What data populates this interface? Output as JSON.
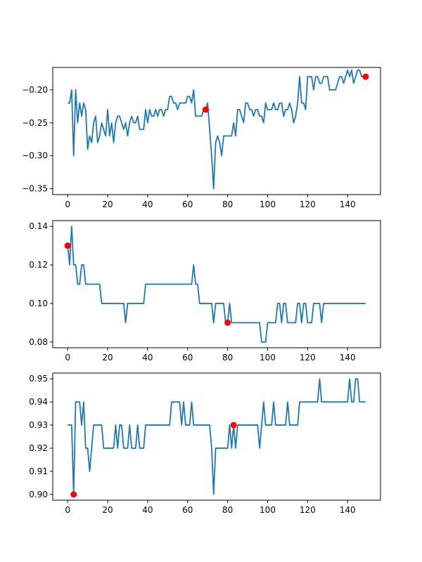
{
  "chart_data": [
    {
      "type": "line",
      "title": "",
      "xlabel": "",
      "ylabel": "",
      "xlim": [
        -7.45,
        156.45
      ],
      "ylim": [
        -0.359,
        -0.166
      ],
      "xticks": [
        0,
        20,
        40,
        60,
        80,
        100,
        120,
        140
      ],
      "xtick_labels": [
        "0",
        "20",
        "40",
        "60",
        "80",
        "100",
        "120",
        "140"
      ],
      "yticks": [
        -0.35,
        -0.3,
        -0.25,
        -0.2
      ],
      "ytick_labels": [
        "−0.35",
        "−0.30",
        "−0.25",
        "−0.20"
      ],
      "line_color": "#1f77b4",
      "marker_color": "#ff0000",
      "grid": false,
      "series": [
        {
          "x": [
            0,
            1,
            2,
            3,
            4,
            5,
            6,
            7,
            8,
            9,
            10,
            11,
            12,
            13,
            14,
            15,
            16,
            17,
            18,
            19,
            20,
            21,
            22,
            23,
            24,
            25,
            26,
            27,
            28,
            29,
            30,
            31,
            32,
            33,
            34,
            35,
            36,
            37,
            38,
            39,
            40,
            41,
            42,
            43,
            44,
            45,
            46,
            47,
            48,
            49,
            50,
            51,
            52,
            53,
            54,
            55,
            56,
            57,
            58,
            59,
            60,
            61,
            62,
            63,
            64,
            65,
            66,
            67,
            68,
            69,
            70,
            71,
            72,
            73,
            74,
            75,
            76,
            77,
            78,
            79,
            80,
            81,
            82,
            83,
            84,
            85,
            86,
            87,
            88,
            89,
            90,
            91,
            92,
            93,
            94,
            95,
            96,
            97,
            98,
            99,
            100,
            101,
            102,
            103,
            104,
            105,
            106,
            107,
            108,
            109,
            110,
            111,
            112,
            113,
            114,
            115,
            116,
            117,
            118,
            119,
            120,
            121,
            122,
            123,
            124,
            125,
            126,
            127,
            128,
            129,
            130,
            131,
            132,
            133,
            134,
            135,
            136,
            137,
            138,
            139,
            140,
            141,
            142,
            143,
            144,
            145,
            146,
            147,
            148,
            149
          ],
          "y": [
            -0.22,
            -0.22,
            -0.2,
            -0.3,
            -0.2,
            -0.25,
            -0.22,
            -0.24,
            -0.22,
            -0.23,
            -0.29,
            -0.27,
            -0.28,
            -0.25,
            -0.24,
            -0.28,
            -0.27,
            -0.25,
            -0.26,
            -0.27,
            -0.23,
            -0.27,
            -0.25,
            -0.28,
            -0.25,
            -0.24,
            -0.24,
            -0.25,
            -0.26,
            -0.25,
            -0.27,
            -0.25,
            -0.24,
            -0.25,
            -0.25,
            -0.24,
            -0.26,
            -0.26,
            -0.26,
            -0.23,
            -0.25,
            -0.23,
            -0.24,
            -0.24,
            -0.23,
            -0.24,
            -0.23,
            -0.23,
            -0.24,
            -0.23,
            -0.23,
            -0.21,
            -0.21,
            -0.22,
            -0.22,
            -0.23,
            -0.22,
            -0.22,
            -0.22,
            -0.22,
            -0.21,
            -0.21,
            -0.22,
            -0.2,
            -0.24,
            -0.24,
            -0.24,
            -0.24,
            -0.23,
            -0.23,
            -0.22,
            -0.26,
            -0.3,
            -0.35,
            -0.28,
            -0.27,
            -0.28,
            -0.3,
            -0.27,
            -0.27,
            -0.27,
            -0.27,
            -0.27,
            -0.25,
            -0.27,
            -0.23,
            -0.23,
            -0.24,
            -0.25,
            -0.22,
            -0.22,
            -0.23,
            -0.23,
            -0.24,
            -0.23,
            -0.23,
            -0.24,
            -0.24,
            -0.25,
            -0.22,
            -0.23,
            -0.23,
            -0.23,
            -0.22,
            -0.23,
            -0.23,
            -0.22,
            -0.22,
            -0.24,
            -0.23,
            -0.23,
            -0.22,
            -0.23,
            -0.25,
            -0.24,
            -0.22,
            -0.18,
            -0.22,
            -0.22,
            -0.23,
            -0.18,
            -0.18,
            -0.18,
            -0.2,
            -0.18,
            -0.18,
            -0.19,
            -0.19,
            -0.18,
            -0.18,
            -0.18,
            -0.2,
            -0.2,
            -0.2,
            -0.2,
            -0.19,
            -0.18,
            -0.18,
            -0.19,
            -0.18,
            -0.17,
            -0.18,
            -0.17,
            -0.19,
            -0.18,
            -0.17,
            -0.17,
            -0.18,
            -0.18,
            -0.18
          ]
        }
      ],
      "markers": [
        {
          "x": 69,
          "y": -0.23
        },
        {
          "x": 149,
          "y": -0.18
        }
      ]
    },
    {
      "type": "line",
      "title": "",
      "xlabel": "",
      "ylabel": "",
      "xlim": [
        -7.45,
        156.45
      ],
      "ylim": [
        0.077,
        0.143
      ],
      "xticks": [
        0,
        20,
        40,
        60,
        80,
        100,
        120,
        140
      ],
      "xtick_labels": [
        "0",
        "20",
        "40",
        "60",
        "80",
        "100",
        "120",
        "140"
      ],
      "yticks": [
        0.08,
        0.1,
        0.12,
        0.14
      ],
      "ytick_labels": [
        "0.08",
        "0.10",
        "0.12",
        "0.14"
      ],
      "line_color": "#1f77b4",
      "marker_color": "#ff0000",
      "grid": false,
      "series": [
        {
          "x": [
            0,
            1,
            2,
            3,
            4,
            5,
            6,
            7,
            8,
            9,
            10,
            11,
            12,
            13,
            14,
            15,
            16,
            17,
            18,
            19,
            20,
            21,
            22,
            23,
            24,
            25,
            26,
            27,
            28,
            29,
            30,
            31,
            32,
            33,
            34,
            35,
            36,
            37,
            38,
            39,
            40,
            41,
            42,
            43,
            44,
            45,
            46,
            47,
            48,
            49,
            50,
            51,
            52,
            53,
            54,
            55,
            56,
            57,
            58,
            59,
            60,
            61,
            62,
            63,
            64,
            65,
            66,
            67,
            68,
            69,
            70,
            71,
            72,
            73,
            74,
            75,
            76,
            77,
            78,
            79,
            80,
            81,
            82,
            83,
            84,
            85,
            86,
            87,
            88,
            89,
            90,
            91,
            92,
            93,
            94,
            95,
            96,
            97,
            98,
            99,
            100,
            101,
            102,
            103,
            104,
            105,
            106,
            107,
            108,
            109,
            110,
            111,
            112,
            113,
            114,
            115,
            116,
            117,
            118,
            119,
            120,
            121,
            122,
            123,
            124,
            125,
            126,
            127,
            128,
            129,
            130,
            131,
            132,
            133,
            134,
            135,
            136,
            137,
            138,
            139,
            140,
            141,
            142,
            143,
            144,
            145,
            146,
            147,
            148,
            149
          ],
          "y": [
            0.13,
            0.12,
            0.14,
            0.12,
            0.12,
            0.11,
            0.11,
            0.12,
            0.12,
            0.11,
            0.11,
            0.11,
            0.11,
            0.11,
            0.11,
            0.11,
            0.11,
            0.1,
            0.1,
            0.1,
            0.1,
            0.1,
            0.1,
            0.1,
            0.1,
            0.1,
            0.1,
            0.1,
            0.1,
            0.09,
            0.1,
            0.1,
            0.1,
            0.1,
            0.1,
            0.1,
            0.1,
            0.1,
            0.1,
            0.11,
            0.11,
            0.11,
            0.11,
            0.11,
            0.11,
            0.11,
            0.11,
            0.11,
            0.11,
            0.11,
            0.11,
            0.11,
            0.11,
            0.11,
            0.11,
            0.11,
            0.11,
            0.11,
            0.11,
            0.11,
            0.11,
            0.11,
            0.11,
            0.12,
            0.11,
            0.11,
            0.1,
            0.1,
            0.1,
            0.1,
            0.1,
            0.1,
            0.1,
            0.09,
            0.1,
            0.1,
            0.1,
            0.1,
            0.1,
            0.09,
            0.09,
            0.1,
            0.09,
            0.09,
            0.09,
            0.09,
            0.09,
            0.09,
            0.09,
            0.09,
            0.09,
            0.09,
            0.09,
            0.09,
            0.09,
            0.09,
            0.09,
            0.08,
            0.08,
            0.08,
            0.09,
            0.09,
            0.09,
            0.09,
            0.09,
            0.1,
            0.1,
            0.09,
            0.1,
            0.1,
            0.09,
            0.09,
            0.09,
            0.09,
            0.09,
            0.1,
            0.1,
            0.09,
            0.1,
            0.1,
            0.09,
            0.09,
            0.09,
            0.1,
            0.1,
            0.1,
            0.1,
            0.09,
            0.1,
            0.1,
            0.1,
            0.1,
            0.1,
            0.1,
            0.1,
            0.1,
            0.1,
            0.1,
            0.1,
            0.1,
            0.1,
            0.1,
            0.1,
            0.1,
            0.1,
            0.1,
            0.1,
            0.1,
            0.1,
            0.1
          ]
        }
      ],
      "markers": [
        {
          "x": 0,
          "y": 0.13
        },
        {
          "x": 80,
          "y": 0.09
        }
      ]
    },
    {
      "type": "line",
      "title": "",
      "xlabel": "",
      "ylabel": "",
      "xlim": [
        -7.45,
        156.45
      ],
      "ylim": [
        0.8975,
        0.9525
      ],
      "xticks": [
        0,
        20,
        40,
        60,
        80,
        100,
        120,
        140
      ],
      "xtick_labels": [
        "0",
        "20",
        "40",
        "60",
        "80",
        "100",
        "120",
        "140"
      ],
      "yticks": [
        0.9,
        0.91,
        0.92,
        0.93,
        0.94,
        0.95
      ],
      "ytick_labels": [
        "0.90",
        "0.91",
        "0.92",
        "0.93",
        "0.94",
        "0.95"
      ],
      "line_color": "#1f77b4",
      "marker_color": "#ff0000",
      "grid": false,
      "series": [
        {
          "x": [
            0,
            1,
            2,
            3,
            4,
            5,
            6,
            7,
            8,
            9,
            10,
            11,
            12,
            13,
            14,
            15,
            16,
            17,
            18,
            19,
            20,
            21,
            22,
            23,
            24,
            25,
            26,
            27,
            28,
            29,
            30,
            31,
            32,
            33,
            34,
            35,
            36,
            37,
            38,
            39,
            40,
            41,
            42,
            43,
            44,
            45,
            46,
            47,
            48,
            49,
            50,
            51,
            52,
            53,
            54,
            55,
            56,
            57,
            58,
            59,
            60,
            61,
            62,
            63,
            64,
            65,
            66,
            67,
            68,
            69,
            70,
            71,
            72,
            73,
            74,
            75,
            76,
            77,
            78,
            79,
            80,
            81,
            82,
            83,
            84,
            85,
            86,
            87,
            88,
            89,
            90,
            91,
            92,
            93,
            94,
            95,
            96,
            97,
            98,
            99,
            100,
            101,
            102,
            103,
            104,
            105,
            106,
            107,
            108,
            109,
            110,
            111,
            112,
            113,
            114,
            115,
            116,
            117,
            118,
            119,
            120,
            121,
            122,
            123,
            124,
            125,
            126,
            127,
            128,
            129,
            130,
            131,
            132,
            133,
            134,
            135,
            136,
            137,
            138,
            139,
            140,
            141,
            142,
            143,
            144,
            145,
            146,
            147,
            148,
            149
          ],
          "y": [
            0.93,
            0.93,
            0.93,
            0.9,
            0.94,
            0.94,
            0.94,
            0.93,
            0.94,
            0.92,
            0.92,
            0.91,
            0.92,
            0.93,
            0.93,
            0.93,
            0.93,
            0.93,
            0.92,
            0.92,
            0.92,
            0.92,
            0.92,
            0.92,
            0.93,
            0.92,
            0.93,
            0.93,
            0.92,
            0.92,
            0.92,
            0.93,
            0.92,
            0.92,
            0.92,
            0.93,
            0.92,
            0.92,
            0.92,
            0.93,
            0.93,
            0.93,
            0.93,
            0.93,
            0.93,
            0.93,
            0.93,
            0.93,
            0.93,
            0.93,
            0.93,
            0.93,
            0.94,
            0.94,
            0.94,
            0.94,
            0.94,
            0.93,
            0.94,
            0.93,
            0.93,
            0.93,
            0.94,
            0.93,
            0.93,
            0.93,
            0.93,
            0.93,
            0.93,
            0.93,
            0.93,
            0.93,
            0.92,
            0.9,
            0.92,
            0.92,
            0.92,
            0.92,
            0.92,
            0.92,
            0.92,
            0.93,
            0.92,
            0.93,
            0.92,
            0.93,
            0.93,
            0.93,
            0.93,
            0.93,
            0.93,
            0.93,
            0.93,
            0.93,
            0.93,
            0.93,
            0.92,
            0.93,
            0.94,
            0.93,
            0.93,
            0.93,
            0.93,
            0.94,
            0.93,
            0.93,
            0.93,
            0.93,
            0.93,
            0.93,
            0.94,
            0.93,
            0.93,
            0.93,
            0.93,
            0.93,
            0.94,
            0.94,
            0.94,
            0.94,
            0.94,
            0.94,
            0.94,
            0.94,
            0.94,
            0.94,
            0.95,
            0.94,
            0.94,
            0.94,
            0.94,
            0.94,
            0.94,
            0.94,
            0.94,
            0.94,
            0.94,
            0.94,
            0.94,
            0.94,
            0.94,
            0.95,
            0.94,
            0.94,
            0.95,
            0.95,
            0.94,
            0.94,
            0.94,
            0.94
          ]
        }
      ],
      "markers": [
        {
          "x": 3,
          "y": 0.9
        },
        {
          "x": 83,
          "y": 0.93
        }
      ]
    }
  ]
}
